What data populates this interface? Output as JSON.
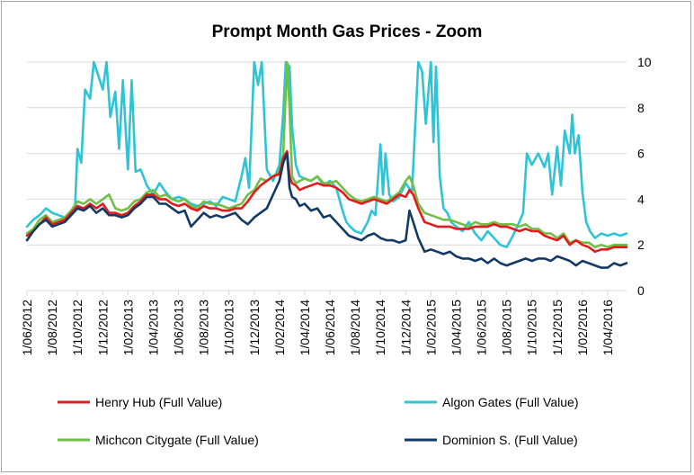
{
  "chart_data": {
    "type": "line",
    "title": "Prompt Month Gas Prices - Zoom",
    "xlabel": "",
    "ylabel": "",
    "ylim": [
      0,
      10
    ],
    "y_ticks": [
      "0",
      "2",
      "4",
      "6",
      "8",
      "10"
    ],
    "x_range_months": [
      0,
      47.5
    ],
    "x_ticks": [
      {
        "label": "1/06/2012",
        "month": 0
      },
      {
        "label": "1/08/2012",
        "month": 2
      },
      {
        "label": "1/10/2012",
        "month": 4
      },
      {
        "label": "1/12/2012",
        "month": 6
      },
      {
        "label": "1/02/2013",
        "month": 8
      },
      {
        "label": "1/04/2013",
        "month": 10
      },
      {
        "label": "1/06/2013",
        "month": 12
      },
      {
        "label": "1/08/2013",
        "month": 14
      },
      {
        "label": "1/10/2013",
        "month": 16
      },
      {
        "label": "1/12/2013",
        "month": 18
      },
      {
        "label": "1/02/2014",
        "month": 20
      },
      {
        "label": "1/04/2014",
        "month": 22
      },
      {
        "label": "1/06/2014",
        "month": 24
      },
      {
        "label": "1/08/2014",
        "month": 26
      },
      {
        "label": "1/10/2014",
        "month": 28
      },
      {
        "label": "1/12/2014",
        "month": 30
      },
      {
        "label": "1/02/2015",
        "month": 32
      },
      {
        "label": "1/04/2015",
        "month": 34
      },
      {
        "label": "1/06/2015",
        "month": 36
      },
      {
        "label": "1/08/2015",
        "month": 38
      },
      {
        "label": "1/10/2015",
        "month": 40
      },
      {
        "label": "1/12/2015",
        "month": 42
      },
      {
        "label": "1/02/2016",
        "month": 44
      },
      {
        "label": "1/04/2016",
        "month": 46
      }
    ],
    "legend_position": "bottom",
    "series": [
      {
        "name": "Algon Gates (Full Value)",
        "color": "#2ec4d6",
        "x": [
          0,
          0.5,
          1,
          1.5,
          2,
          2.5,
          3,
          3.5,
          3.8,
          4,
          4.3,
          4.6,
          5,
          5.3,
          5.6,
          6,
          6.3,
          6.6,
          7,
          7.3,
          7.6,
          8,
          8.3,
          8.6,
          9,
          9.5,
          10,
          10.5,
          11,
          11.5,
          12,
          12.5,
          13,
          13.5,
          14,
          14.5,
          15,
          15.5,
          16,
          16.5,
          17,
          17.3,
          17.6,
          18,
          18.3,
          18.6,
          19,
          19.5,
          20,
          20.3,
          20.5,
          20.8,
          21,
          21.3,
          21.6,
          22,
          22.5,
          23,
          23.5,
          24,
          24.5,
          25,
          25.3,
          25.6,
          26,
          26.5,
          27,
          27.3,
          27.6,
          28,
          28.2,
          28.4,
          28.7,
          29,
          29.5,
          30,
          30.5,
          31,
          31.3,
          31.6,
          32,
          32.2,
          32.4,
          32.7,
          33,
          33.3,
          33.6,
          34,
          34.5,
          35,
          35.5,
          36,
          36.5,
          37,
          37.5,
          38,
          38.5,
          39,
          39.3,
          39.6,
          40,
          40.5,
          41,
          41.3,
          41.6,
          42,
          42.3,
          42.6,
          43,
          43.2,
          43.4,
          43.7,
          44,
          44.3,
          44.6,
          45,
          45.5,
          46,
          46.5,
          47,
          47.5
        ],
        "values": [
          2.8,
          3.1,
          3.3,
          3.6,
          3.4,
          3.3,
          3.2,
          3.4,
          3.6,
          6.2,
          5.6,
          8.8,
          8.4,
          10.0,
          9.5,
          8.8,
          10.0,
          7.6,
          8.7,
          6.2,
          9.2,
          5.3,
          9.2,
          5.2,
          5.3,
          4.6,
          4.2,
          4.7,
          4.3,
          4.0,
          4.1,
          4.0,
          3.8,
          3.7,
          3.8,
          3.9,
          3.7,
          4.1,
          4.0,
          3.9,
          5.0,
          5.8,
          4.5,
          10.0,
          9.0,
          10.0,
          5.3,
          4.8,
          5.5,
          7.8,
          10.0,
          9.8,
          7.2,
          5.5,
          5.0,
          4.9,
          4.8,
          5.0,
          4.6,
          4.8,
          4.5,
          3.5,
          3.0,
          2.8,
          2.6,
          2.5,
          3.0,
          3.5,
          3.3,
          6.4,
          4.2,
          6.0,
          4.2,
          3.9,
          4.1,
          4.7,
          4.3,
          10.0,
          9.6,
          7.3,
          10.0,
          6.5,
          9.8,
          5.0,
          3.6,
          3.4,
          3.0,
          2.8,
          2.6,
          3.0,
          2.5,
          2.2,
          2.6,
          2.3,
          2.0,
          1.9,
          2.4,
          3.0,
          3.4,
          6.0,
          5.5,
          6.0,
          5.4,
          6.0,
          4.2,
          6.3,
          4.6,
          7.0,
          6.0,
          7.7,
          6.0,
          6.8,
          4.3,
          3.0,
          2.6,
          2.3,
          2.5,
          2.4,
          2.5,
          2.4,
          2.5
        ]
      },
      {
        "name": "Michcon Citygate (Full Value)",
        "color": "#70bf47",
        "x": [
          0,
          0.5,
          1,
          1.5,
          2,
          2.5,
          3,
          3.5,
          4,
          4.5,
          5,
          5.5,
          6,
          6.5,
          7,
          7.5,
          8,
          8.5,
          9,
          9.5,
          10,
          10.5,
          11,
          11.5,
          12,
          12.5,
          13,
          13.5,
          14,
          14.5,
          15,
          15.5,
          16,
          16.5,
          17,
          17.5,
          18,
          18.5,
          19,
          19.5,
          20,
          20.3,
          20.6,
          20.8,
          21,
          21.3,
          21.6,
          22,
          22.5,
          23,
          23.5,
          24,
          24.5,
          25,
          25.5,
          26,
          26.5,
          27,
          27.5,
          28,
          28.5,
          29,
          29.5,
          30,
          30.3,
          30.6,
          31,
          31.5,
          32,
          32.5,
          33,
          33.5,
          34,
          34.5,
          35,
          35.5,
          36,
          36.5,
          37,
          37.5,
          38,
          38.5,
          39,
          39.5,
          40,
          40.5,
          41,
          41.5,
          42,
          42.5,
          43,
          43.5,
          44,
          44.5,
          45,
          45.5,
          46,
          46.5,
          47,
          47.5
        ],
        "values": [
          2.5,
          2.7,
          3.1,
          3.3,
          3.0,
          3.1,
          3.2,
          3.5,
          3.9,
          3.8,
          4.0,
          3.8,
          4.0,
          4.2,
          3.6,
          3.5,
          3.6,
          3.9,
          4.0,
          4.3,
          4.4,
          4.1,
          4.2,
          4.0,
          3.9,
          4.0,
          3.7,
          3.6,
          3.9,
          3.8,
          3.8,
          3.7,
          3.6,
          3.7,
          3.8,
          4.2,
          4.4,
          4.9,
          4.8,
          5.0,
          5.2,
          6.0,
          10.0,
          8.0,
          5.0,
          4.7,
          4.8,
          4.9,
          4.8,
          5.0,
          4.7,
          4.7,
          4.8,
          4.5,
          4.2,
          4.0,
          3.9,
          4.0,
          4.1,
          4.0,
          3.9,
          4.1,
          4.3,
          4.8,
          5.0,
          4.6,
          3.8,
          3.4,
          3.3,
          3.2,
          3.1,
          3.1,
          3.0,
          2.9,
          2.8,
          3.0,
          2.9,
          2.9,
          3.0,
          2.9,
          2.9,
          2.9,
          2.8,
          2.9,
          2.7,
          2.7,
          2.5,
          2.5,
          2.3,
          2.5,
          2.1,
          2.2,
          2.1,
          2.1,
          1.9,
          2.0,
          1.9,
          2.0,
          2.0,
          2.0
        ]
      },
      {
        "name": "Henry Hub (Full Value)",
        "color": "#e31b1b",
        "x": [
          0,
          0.5,
          1,
          1.5,
          2,
          2.5,
          3,
          3.5,
          4,
          4.5,
          5,
          5.5,
          6,
          6.5,
          7,
          7.5,
          8,
          8.5,
          9,
          9.5,
          10,
          10.5,
          11,
          11.5,
          12,
          12.5,
          13,
          13.5,
          14,
          14.5,
          15,
          15.5,
          16,
          16.5,
          17,
          17.5,
          18,
          18.5,
          19,
          19.5,
          20,
          20.3,
          20.6,
          20.8,
          21,
          21.3,
          21.6,
          22,
          22.5,
          23,
          23.5,
          24,
          24.5,
          25,
          25.5,
          26,
          26.5,
          27,
          27.5,
          28,
          28.5,
          29,
          29.5,
          30,
          30.3,
          30.6,
          31,
          31.5,
          32,
          32.5,
          33,
          33.5,
          34,
          34.5,
          35,
          35.5,
          36,
          36.5,
          37,
          37.5,
          38,
          38.5,
          39,
          39.5,
          40,
          40.5,
          41,
          41.5,
          42,
          42.5,
          43,
          43.5,
          44,
          44.5,
          45,
          45.5,
          46,
          46.5,
          47,
          47.5
        ],
        "values": [
          2.4,
          2.6,
          2.9,
          3.2,
          2.9,
          3.0,
          3.1,
          3.4,
          3.7,
          3.6,
          3.8,
          3.6,
          3.8,
          3.4,
          3.4,
          3.3,
          3.4,
          3.7,
          3.9,
          4.2,
          4.2,
          4.0,
          4.0,
          3.8,
          3.7,
          3.8,
          3.6,
          3.5,
          3.7,
          3.6,
          3.6,
          3.5,
          3.5,
          3.6,
          3.6,
          3.9,
          4.3,
          4.6,
          4.8,
          5.0,
          5.1,
          5.8,
          6.1,
          5.0,
          4.7,
          4.6,
          4.4,
          4.5,
          4.6,
          4.7,
          4.6,
          4.6,
          4.5,
          4.3,
          4.0,
          3.9,
          3.8,
          3.9,
          4.0,
          3.9,
          3.8,
          4.0,
          4.2,
          4.1,
          4.4,
          4.2,
          3.6,
          3.0,
          2.9,
          2.8,
          2.8,
          2.8,
          2.7,
          2.7,
          2.7,
          2.8,
          2.8,
          2.8,
          2.9,
          2.8,
          2.8,
          2.7,
          2.6,
          2.7,
          2.6,
          2.6,
          2.4,
          2.3,
          2.2,
          2.4,
          2.0,
          2.2,
          2.0,
          1.9,
          1.7,
          1.8,
          1.8,
          1.9,
          1.9,
          1.9
        ]
      },
      {
        "name": "Dominion S. (Full Value)",
        "color": "#123a64",
        "x": [
          0,
          0.5,
          1,
          1.5,
          2,
          2.5,
          3,
          3.5,
          4,
          4.5,
          5,
          5.5,
          6,
          6.5,
          7,
          7.5,
          8,
          8.5,
          9,
          9.5,
          10,
          10.5,
          11,
          11.5,
          12,
          12.5,
          13,
          13.5,
          14,
          14.5,
          15,
          15.5,
          16,
          16.5,
          17,
          17.5,
          18,
          18.5,
          19,
          19.5,
          20,
          20.3,
          20.6,
          20.8,
          21,
          21.3,
          21.6,
          22,
          22.5,
          23,
          23.5,
          24,
          24.5,
          25,
          25.5,
          26,
          26.5,
          27,
          27.5,
          28,
          28.5,
          29,
          29.5,
          30,
          30.3,
          30.6,
          31,
          31.5,
          32,
          32.5,
          33,
          33.5,
          34,
          34.5,
          35,
          35.5,
          36,
          36.5,
          37,
          37.5,
          38,
          38.5,
          39,
          39.5,
          40,
          40.5,
          41,
          41.5,
          42,
          42.5,
          43,
          43.5,
          44,
          44.5,
          45,
          45.5,
          46,
          46.5,
          47,
          47.5
        ],
        "values": [
          2.2,
          2.6,
          2.9,
          3.1,
          2.8,
          2.9,
          3.0,
          3.3,
          3.6,
          3.5,
          3.7,
          3.4,
          3.6,
          3.3,
          3.3,
          3.2,
          3.3,
          3.6,
          3.8,
          4.1,
          4.1,
          3.8,
          3.8,
          3.6,
          3.4,
          3.5,
          2.8,
          3.1,
          3.4,
          3.2,
          3.3,
          3.2,
          3.3,
          3.4,
          3.1,
          2.9,
          3.2,
          3.4,
          3.6,
          4.2,
          4.8,
          5.6,
          6.0,
          4.5,
          4.1,
          4.0,
          3.7,
          3.8,
          3.5,
          3.6,
          3.2,
          3.3,
          3.0,
          2.7,
          2.4,
          2.3,
          2.2,
          2.4,
          2.5,
          2.3,
          2.2,
          2.2,
          2.1,
          2.2,
          3.5,
          3.0,
          2.3,
          1.7,
          1.8,
          1.7,
          1.6,
          1.7,
          1.5,
          1.4,
          1.4,
          1.3,
          1.4,
          1.2,
          1.4,
          1.2,
          1.1,
          1.2,
          1.3,
          1.4,
          1.3,
          1.4,
          1.4,
          1.3,
          1.5,
          1.4,
          1.3,
          1.1,
          1.3,
          1.2,
          1.1,
          1.0,
          1.0,
          1.2,
          1.1,
          1.2
        ]
      }
    ]
  }
}
